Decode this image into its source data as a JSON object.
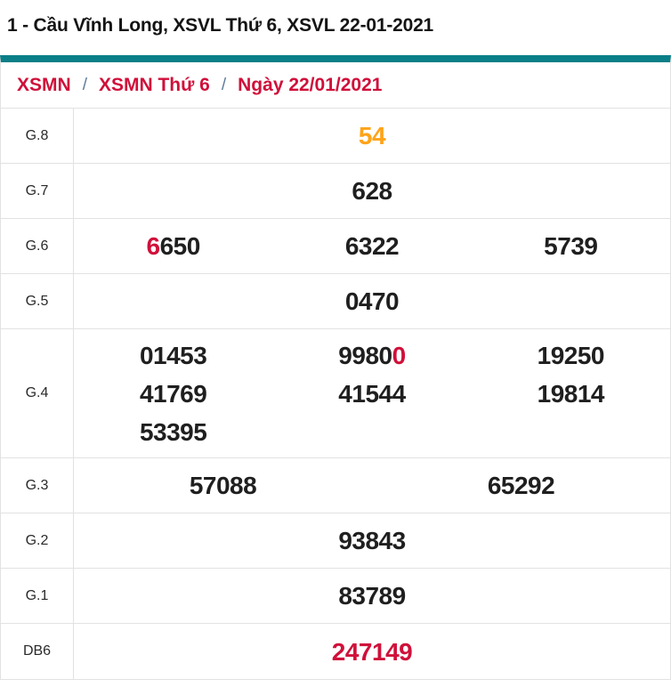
{
  "title": "1 - Cầu Vĩnh Long, XSVL Thứ 6, XSVL 22-01-2021",
  "colors": {
    "accent_teal": "#0b7f87",
    "result_red": "#d0103a",
    "result_orange": "#ffa318",
    "result_black": "#1f1f1f"
  },
  "breadcrumb": {
    "separator": "/",
    "items": [
      {
        "label": "XSMN"
      },
      {
        "label": "XSMN Thứ 6"
      },
      {
        "label": "Ngày 22/01/2021"
      }
    ]
  },
  "results": {
    "rows": [
      {
        "label": "G.8",
        "values": [
          [
            {
              "t": "54",
              "c": "#ffa318"
            }
          ]
        ]
      },
      {
        "label": "G.7",
        "values": [
          [
            {
              "t": "628",
              "c": "#1f1f1f"
            }
          ]
        ]
      },
      {
        "label": "G.6",
        "values": [
          [
            {
              "t": "6",
              "c": "#d0103a"
            },
            {
              "t": "650",
              "c": "#1f1f1f"
            }
          ],
          [
            {
              "t": "6322",
              "c": "#1f1f1f"
            }
          ],
          [
            {
              "t": "5739",
              "c": "#1f1f1f"
            }
          ]
        ]
      },
      {
        "label": "G.5",
        "values": [
          [
            {
              "t": "0470",
              "c": "#1f1f1f"
            }
          ]
        ]
      },
      {
        "label": "G.4",
        "values": [
          [
            {
              "t": "01453",
              "c": "#1f1f1f"
            }
          ],
          [
            {
              "t": "9980",
              "c": "#1f1f1f"
            },
            {
              "t": "0",
              "c": "#d0103a"
            }
          ],
          [
            {
              "t": "19250",
              "c": "#1f1f1f"
            }
          ],
          [
            {
              "t": "41769",
              "c": "#1f1f1f"
            }
          ],
          [
            {
              "t": "41544",
              "c": "#1f1f1f"
            }
          ],
          [
            {
              "t": "19814",
              "c": "#1f1f1f"
            }
          ],
          [
            {
              "t": "53395",
              "c": "#1f1f1f"
            }
          ]
        ]
      },
      {
        "label": "G.3",
        "values": [
          [
            {
              "t": "57088",
              "c": "#1f1f1f"
            }
          ],
          [
            {
              "t": "65292",
              "c": "#1f1f1f"
            }
          ]
        ]
      },
      {
        "label": "G.2",
        "values": [
          [
            {
              "t": "93843",
              "c": "#1f1f1f"
            }
          ]
        ]
      },
      {
        "label": "G.1",
        "values": [
          [
            {
              "t": "83789",
              "c": "#1f1f1f"
            }
          ]
        ]
      },
      {
        "label": "DB6",
        "values": [
          [
            {
              "t": "247149",
              "c": "#d0103a"
            }
          ]
        ]
      }
    ]
  }
}
